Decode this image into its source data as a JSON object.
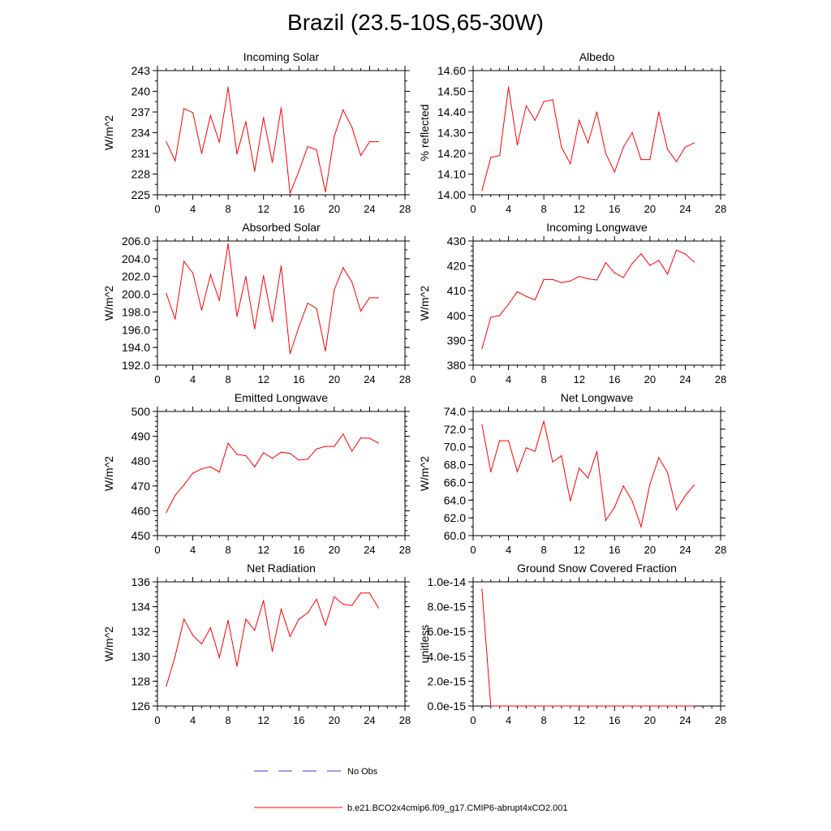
{
  "title": "Brazil (23.5-10S,65-30W)",
  "legend": [
    {
      "label": "No Obs",
      "color": "#3b3bdb",
      "dash": true
    },
    {
      "label": "b.e21.BCO2x4cmip6.f09_g17.CMIP6-abrupt4xCO2.001",
      "color": "#ff0000",
      "dash": false
    }
  ],
  "series_color": "#ff0000",
  "chart_data": [
    {
      "type": "line",
      "title": "Incoming Solar",
      "xlabel": "",
      "ylabel": "W/m^2",
      "xlim": [
        0,
        28
      ],
      "xticks": [
        0,
        4,
        8,
        12,
        16,
        20,
        24,
        28
      ],
      "ylim": [
        225,
        243
      ],
      "yticks": [
        225,
        228,
        231,
        234,
        237,
        240,
        243
      ],
      "ytick_labels": [
        "225",
        "228",
        "231",
        "234",
        "237",
        "240",
        "243"
      ],
      "x": [
        1,
        2,
        3,
        4,
        5,
        6,
        7,
        8,
        9,
        10,
        11,
        12,
        13,
        14,
        15,
        16,
        17,
        18,
        19,
        20,
        21,
        22,
        23,
        24,
        25
      ],
      "values": [
        232.7,
        229.9,
        237.5,
        236.9,
        231.0,
        236.5,
        232.6,
        240.6,
        230.9,
        235.6,
        228.4,
        236.2,
        229.7,
        237.6,
        225.2,
        228.4,
        232.0,
        231.5,
        225.4,
        233.5,
        237.3,
        234.8,
        230.7,
        232.7,
        232.7
      ]
    },
    {
      "type": "line",
      "title": "Albedo",
      "xlabel": "",
      "ylabel": "% reflected",
      "xlim": [
        0,
        28
      ],
      "xticks": [
        0,
        4,
        8,
        12,
        16,
        20,
        24,
        28
      ],
      "ylim": [
        14.0,
        14.6
      ],
      "yticks": [
        14.0,
        14.1,
        14.2,
        14.3,
        14.4,
        14.5,
        14.6
      ],
      "ytick_labels": [
        "14.00",
        "14.10",
        "14.20",
        "14.30",
        "14.40",
        "14.50",
        "14.60"
      ],
      "x": [
        1,
        2,
        3,
        4,
        5,
        6,
        7,
        8,
        9,
        10,
        11,
        12,
        13,
        14,
        15,
        16,
        17,
        18,
        19,
        20,
        21,
        22,
        23,
        24,
        25
      ],
      "values": [
        14.02,
        14.18,
        14.19,
        14.52,
        14.24,
        14.43,
        14.36,
        14.45,
        14.46,
        14.23,
        14.15,
        14.36,
        14.25,
        14.4,
        14.2,
        14.11,
        14.23,
        14.3,
        14.17,
        14.17,
        14.4,
        14.22,
        14.16,
        14.23,
        14.25
      ]
    },
    {
      "type": "line",
      "title": "Absorbed Solar",
      "xlabel": "",
      "ylabel": "W/m^2",
      "xlim": [
        0,
        28
      ],
      "xticks": [
        0,
        4,
        8,
        12,
        16,
        20,
        24,
        28
      ],
      "ylim": [
        192,
        206
      ],
      "yticks": [
        192,
        194,
        196,
        198,
        200,
        202,
        204,
        206
      ],
      "ytick_labels": [
        "192.0",
        "194.0",
        "196.0",
        "198.0",
        "200.0",
        "202.0",
        "204.0",
        "206.0"
      ],
      "x": [
        1,
        2,
        3,
        4,
        5,
        6,
        7,
        8,
        9,
        10,
        11,
        12,
        13,
        14,
        15,
        16,
        17,
        18,
        19,
        20,
        21,
        22,
        23,
        24,
        25
      ],
      "values": [
        200.1,
        197.2,
        203.7,
        202.4,
        198.2,
        202.2,
        199.3,
        205.7,
        197.5,
        202.0,
        196.1,
        202.1,
        196.9,
        203.2,
        193.3,
        196.3,
        199.0,
        198.4,
        193.6,
        200.5,
        203.0,
        201.4,
        198.1,
        199.6,
        199.6
      ]
    },
    {
      "type": "line",
      "title": "Incoming Longwave",
      "xlabel": "",
      "ylabel": "W/m^2",
      "xlim": [
        0,
        28
      ],
      "xticks": [
        0,
        4,
        8,
        12,
        16,
        20,
        24,
        28
      ],
      "ylim": [
        380,
        430
      ],
      "yticks": [
        380,
        390,
        400,
        410,
        420,
        430
      ],
      "ytick_labels": [
        "380",
        "390",
        "400",
        "410",
        "420",
        "430"
      ],
      "x": [
        1,
        2,
        3,
        4,
        5,
        6,
        7,
        8,
        9,
        10,
        11,
        12,
        13,
        14,
        15,
        16,
        17,
        18,
        19,
        20,
        21,
        22,
        23,
        24,
        25
      ],
      "values": [
        386.7,
        399.3,
        400.0,
        404.5,
        409.6,
        407.7,
        406.3,
        414.5,
        414.5,
        413.2,
        413.9,
        415.8,
        414.8,
        414.3,
        421.3,
        417.2,
        415.3,
        421.0,
        424.8,
        420.2,
        422.2,
        416.7,
        426.3,
        424.8,
        421.6
      ]
    },
    {
      "type": "line",
      "title": "Emitted Longwave",
      "xlabel": "",
      "ylabel": "W/m^2",
      "xlim": [
        0,
        28
      ],
      "xticks": [
        0,
        4,
        8,
        12,
        16,
        20,
        24,
        28
      ],
      "ylim": [
        450,
        500
      ],
      "yticks": [
        450,
        460,
        470,
        480,
        490,
        500
      ],
      "ytick_labels": [
        "450",
        "460",
        "470",
        "480",
        "490",
        "500"
      ],
      "x": [
        1,
        2,
        3,
        4,
        5,
        6,
        7,
        8,
        9,
        10,
        11,
        12,
        13,
        14,
        15,
        16,
        17,
        18,
        19,
        20,
        21,
        22,
        23,
        24,
        25
      ],
      "values": [
        459.3,
        466.2,
        470.4,
        475.1,
        476.9,
        477.7,
        475.6,
        487.2,
        482.7,
        482.2,
        477.7,
        483.4,
        481.1,
        483.6,
        483.1,
        480.4,
        480.8,
        484.9,
        485.9,
        485.9,
        490.9,
        484.0,
        489.3,
        489.2,
        487.3
      ]
    },
    {
      "type": "line",
      "title": "Net Longwave",
      "xlabel": "",
      "ylabel": "W/m^2",
      "xlim": [
        0,
        28
      ],
      "xticks": [
        0,
        4,
        8,
        12,
        16,
        20,
        24,
        28
      ],
      "ylim": [
        60,
        74
      ],
      "yticks": [
        60,
        62,
        64,
        66,
        68,
        70,
        72,
        74
      ],
      "ytick_labels": [
        "60.0",
        "62.0",
        "64.0",
        "66.0",
        "68.0",
        "70.0",
        "72.0",
        "74.0"
      ],
      "x": [
        1,
        2,
        3,
        4,
        5,
        6,
        7,
        8,
        9,
        10,
        11,
        12,
        13,
        14,
        15,
        16,
        17,
        18,
        19,
        20,
        21,
        22,
        23,
        24,
        25
      ],
      "values": [
        72.5,
        67.2,
        70.7,
        70.7,
        67.2,
        69.9,
        69.5,
        72.9,
        68.3,
        69.0,
        63.9,
        67.6,
        66.5,
        69.5,
        61.7,
        63.2,
        65.6,
        63.9,
        61.0,
        65.8,
        68.8,
        67.1,
        62.9,
        64.5,
        65.7
      ]
    },
    {
      "type": "line",
      "title": "Net Radiation",
      "xlabel": "",
      "ylabel": "W/m^2",
      "xlim": [
        0,
        28
      ],
      "xticks": [
        0,
        4,
        8,
        12,
        16,
        20,
        24,
        28
      ],
      "ylim": [
        126,
        136
      ],
      "yticks": [
        126,
        128,
        130,
        132,
        134,
        136
      ],
      "ytick_labels": [
        "126",
        "128",
        "130",
        "132",
        "134",
        "136"
      ],
      "x": [
        1,
        2,
        3,
        4,
        5,
        6,
        7,
        8,
        9,
        10,
        11,
        12,
        13,
        14,
        15,
        16,
        17,
        18,
        19,
        20,
        21,
        22,
        23,
        24,
        25
      ],
      "values": [
        127.6,
        130.0,
        133.0,
        131.7,
        131.0,
        132.3,
        129.9,
        132.9,
        129.2,
        133.0,
        132.1,
        134.5,
        130.4,
        133.8,
        131.6,
        133.0,
        133.5,
        134.6,
        132.5,
        134.8,
        134.2,
        134.1,
        135.1,
        135.1,
        133.9
      ]
    },
    {
      "type": "line",
      "title": "Ground Snow Covered Fraction",
      "xlabel": "",
      "ylabel": "unitless",
      "xlim": [
        0,
        28
      ],
      "xticks": [
        0,
        4,
        8,
        12,
        16,
        20,
        24,
        28
      ],
      "ylim": [
        0,
        1e-14
      ],
      "yticks": [
        0,
        2e-15,
        4e-15,
        6e-15,
        8e-15,
        1e-14
      ],
      "ytick_labels": [
        "0.0e-15",
        "2.0e-15",
        "4.0e-15",
        "6.0e-15",
        "8.0e-15",
        "1.0e-14"
      ],
      "x": [
        1,
        2,
        3,
        4,
        5,
        6,
        7,
        8,
        9,
        10,
        11,
        12,
        13,
        14,
        15,
        16,
        17,
        18,
        19,
        20,
        21,
        22,
        23,
        24,
        25
      ],
      "values": [
        9.4e-15,
        0,
        0,
        0,
        0,
        0,
        0,
        0,
        0,
        0,
        0,
        0,
        0,
        0,
        0,
        0,
        0,
        0,
        0,
        0,
        0,
        0,
        0,
        0,
        0
      ]
    }
  ]
}
